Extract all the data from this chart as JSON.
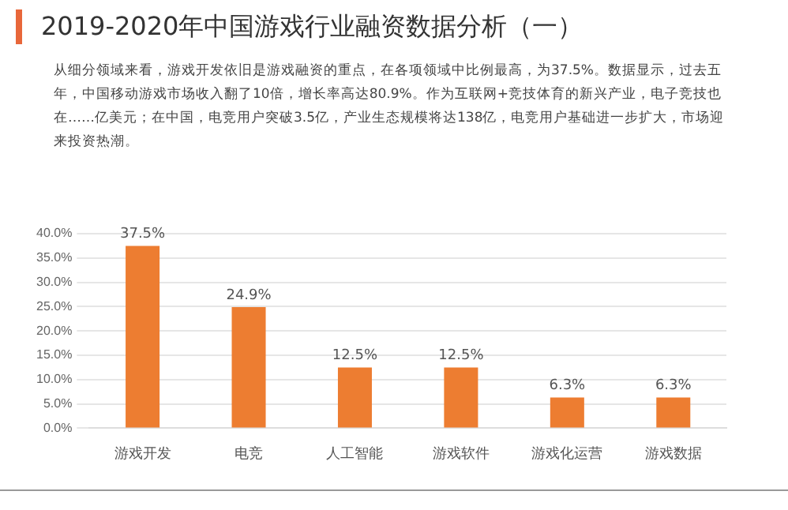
{
  "chart_data": {
    "type": "bar",
    "title": "2019-2020年中国游戏行业融资数据分析（一）",
    "subtitle": "从细分领域来看，游戏开发依旧是游戏融资的重点，在各项领域中比例最高，为37.5%。数据显示，过去五年，中国移动游戏市场收入翻了10倍，增长率高达80.9%。作为互联网+竞技体育的新兴产业，电子竞技也在……亿美元；在中国，电竞用户突破3.5亿，产业生态规模将达138亿，电竞用户基础进一步扩大，市场迎来投资热潮。",
    "categories": [
      "游戏开发",
      "电竞",
      "人工智能",
      "游戏软件",
      "游戏化运营",
      "游戏数据"
    ],
    "values": [
      37.5,
      24.9,
      12.5,
      12.5,
      6.3,
      6.3
    ],
    "value_labels": [
      "37.5%",
      "24.9%",
      "12.5%",
      "12.5%",
      "6.3%",
      "6.3%"
    ],
    "color": "#ed7d31",
    "ylim": [
      0,
      40
    ],
    "yticks": [
      {
        "value": 0,
        "label": "0.0%"
      },
      {
        "value": 5,
        "label": "5.0%"
      },
      {
        "value": 10,
        "label": "10.0%"
      },
      {
        "value": 15,
        "label": "15.0%"
      },
      {
        "value": 20,
        "label": "20.0%"
      },
      {
        "value": 25,
        "label": "25.0%"
      },
      {
        "value": 30,
        "label": "30.0%"
      },
      {
        "value": 35,
        "label": "35.0%"
      },
      {
        "value": 40,
        "label": "40.0%"
      }
    ],
    "grid": "y"
  }
}
